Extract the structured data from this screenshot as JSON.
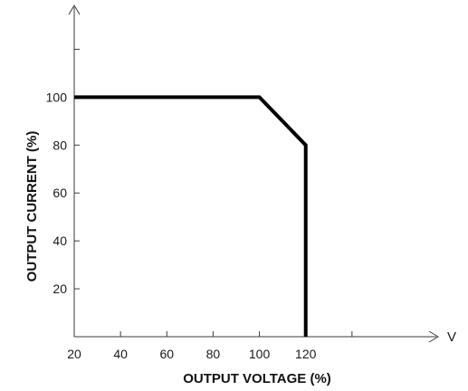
{
  "chart_data": {
    "type": "line",
    "title": "",
    "xlabel": "OUTPUT VOLTAGE (%)",
    "ylabel": "OUTPUT CURRENT (%)",
    "x_unit_label": "V",
    "x_ticks": [
      20,
      40,
      60,
      80,
      100,
      120
    ],
    "x_tick_labels": [
      "20",
      "40",
      "60",
      "80",
      "100",
      "120"
    ],
    "x_unlabeled_ticks": [
      140
    ],
    "y_ticks": [
      20,
      40,
      60,
      80,
      100
    ],
    "y_tick_labels": [
      "20",
      "40",
      "60",
      "80",
      "100"
    ],
    "y_unlabeled_ticks": [
      120
    ],
    "xlim": [
      20,
      160
    ],
    "ylim": [
      0,
      130
    ],
    "grid": false,
    "series": [
      {
        "x": [
          20,
          100,
          120,
          120
        ],
        "y": [
          100,
          100,
          80,
          0
        ],
        "color": "#000000"
      }
    ]
  }
}
